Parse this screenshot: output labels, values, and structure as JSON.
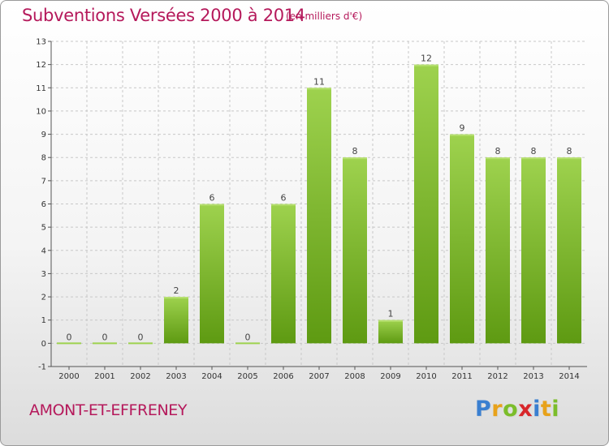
{
  "header": {
    "title": "Subventions Versées 2000 à 2014",
    "subtitle": "(en milliers d'€)"
  },
  "footer": {
    "town": "AMONT-ET-EFFRENEY",
    "logo_letters": [
      {
        "ch": "P",
        "color": "#3a7fd0"
      },
      {
        "ch": "r",
        "color": "#e8a21a"
      },
      {
        "ch": "o",
        "color": "#7bbd2a"
      },
      {
        "ch": "x",
        "color": "#d8262a"
      },
      {
        "ch": "i",
        "color": "#3a7fd0"
      },
      {
        "ch": "t",
        "color": "#e8a21a"
      },
      {
        "ch": "i",
        "color": "#7bbd2a"
      }
    ]
  },
  "chart_data": {
    "type": "bar",
    "categories": [
      "2000",
      "2001",
      "2002",
      "2003",
      "2004",
      "2005",
      "2006",
      "2007",
      "2008",
      "2009",
      "2010",
      "2011",
      "2012",
      "2013",
      "2014"
    ],
    "values": [
      0,
      0,
      0,
      2,
      6,
      0,
      6,
      11,
      8,
      1,
      12,
      9,
      8,
      8,
      8
    ],
    "data_labels": [
      "0",
      "0",
      "0",
      "2",
      "6",
      "0",
      "6",
      "11",
      "8",
      "1",
      "12",
      "9",
      "8",
      "8",
      "8"
    ],
    "y_ticks": [
      "-1",
      "0",
      "1",
      "2",
      "3",
      "4",
      "5",
      "6",
      "7",
      "8",
      "9",
      "10",
      "11",
      "12",
      "13"
    ],
    "ylim": [
      -1,
      13
    ],
    "grid": true,
    "bar_color_top": "#9ed24e",
    "bar_color_bottom": "#5e9a12",
    "grid_color": "#c8c8c8"
  }
}
